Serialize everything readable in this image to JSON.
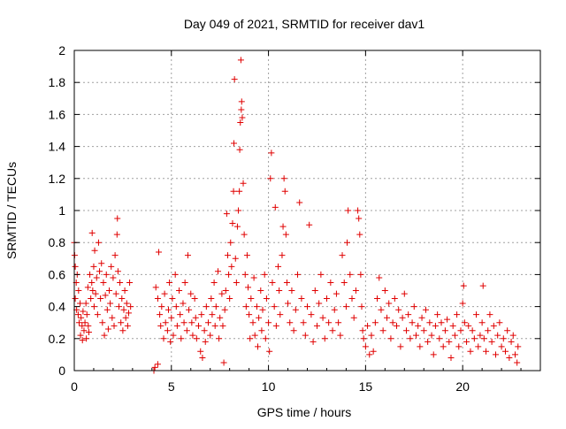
{
  "chart_data": {
    "type": "scatter",
    "title": "Day 049 of 2021, SRMTID for receiver dav1",
    "xlabel": "GPS time / hours",
    "ylabel": "SRMTID / TECUs",
    "xlim": [
      0,
      24
    ],
    "ylim": [
      0,
      2
    ],
    "xticks": [
      0,
      5,
      10,
      15,
      20
    ],
    "xtick_labels": [
      "0",
      "5",
      "10",
      "15",
      "20"
    ],
    "yticks": [
      0,
      0.2,
      0.4,
      0.6,
      0.8,
      1,
      1.2,
      1.4,
      1.6,
      1.8,
      2
    ],
    "ytick_labels": [
      "0",
      "0.2",
      "0.4",
      "0.6",
      "0.8",
      "1",
      "1.2",
      "1.4",
      "1.6",
      "1.8",
      "2"
    ],
    "grid": true,
    "marker": "+",
    "color": "#e00000",
    "series": [
      {
        "name": "dav1",
        "points": [
          [
            0.0,
            0.8
          ],
          [
            0.02,
            0.72
          ],
          [
            0.05,
            0.65
          ],
          [
            0.05,
            0.45
          ],
          [
            0.1,
            0.55
          ],
          [
            0.12,
            0.38
          ],
          [
            0.15,
            0.6
          ],
          [
            0.2,
            0.35
          ],
          [
            0.22,
            0.5
          ],
          [
            0.25,
            0.3
          ],
          [
            0.3,
            0.42
          ],
          [
            0.32,
            0.22
          ],
          [
            0.35,
            0.33
          ],
          [
            0.4,
            0.28
          ],
          [
            0.42,
            0.19
          ],
          [
            0.45,
            0.37
          ],
          [
            0.5,
            0.25
          ],
          [
            0.55,
            0.3
          ],
          [
            0.6,
            0.42
          ],
          [
            0.62,
            0.2
          ],
          [
            0.65,
            0.35
          ],
          [
            0.7,
            0.52
          ],
          [
            0.72,
            0.28
          ],
          [
            0.75,
            0.24
          ],
          [
            0.8,
            0.6
          ],
          [
            0.85,
            0.45
          ],
          [
            0.9,
            0.55
          ],
          [
            0.92,
            0.86
          ],
          [
            0.95,
            0.5
          ],
          [
            1.0,
            0.65
          ],
          [
            1.02,
            0.4
          ],
          [
            1.05,
            0.75
          ],
          [
            1.1,
            0.48
          ],
          [
            1.15,
            0.58
          ],
          [
            1.2,
            0.35
          ],
          [
            1.25,
            0.8
          ],
          [
            1.3,
            0.62
          ],
          [
            1.35,
            0.45
          ],
          [
            1.4,
            0.67
          ],
          [
            1.45,
            0.3
          ],
          [
            1.5,
            0.55
          ],
          [
            1.55,
            0.22
          ],
          [
            1.6,
            0.47
          ],
          [
            1.65,
            0.6
          ],
          [
            1.7,
            0.38
          ],
          [
            1.75,
            0.26
          ],
          [
            1.8,
            0.5
          ],
          [
            1.85,
            0.42
          ],
          [
            1.9,
            0.65
          ],
          [
            1.95,
            0.33
          ],
          [
            2.0,
            0.58
          ],
          [
            2.05,
            0.28
          ],
          [
            2.1,
            0.72
          ],
          [
            2.15,
            0.48
          ],
          [
            2.2,
            0.85
          ],
          [
            2.22,
            0.95
          ],
          [
            2.25,
            0.62
          ],
          [
            2.3,
            0.4
          ],
          [
            2.35,
            0.55
          ],
          [
            2.4,
            0.3
          ],
          [
            2.45,
            0.45
          ],
          [
            2.5,
            0.25
          ],
          [
            2.55,
            0.38
          ],
          [
            2.6,
            0.5
          ],
          [
            2.65,
            0.33
          ],
          [
            2.7,
            0.42
          ],
          [
            2.75,
            0.28
          ],
          [
            2.8,
            0.36
          ],
          [
            2.85,
            0.55
          ],
          [
            2.9,
            0.4
          ],
          [
            4.1,
            0.0
          ],
          [
            4.15,
            0.02
          ],
          [
            4.3,
            0.04
          ],
          [
            4.35,
            0.74
          ],
          [
            4.2,
            0.52
          ],
          [
            4.3,
            0.45
          ],
          [
            4.4,
            0.35
          ],
          [
            4.45,
            0.28
          ],
          [
            4.5,
            0.4
          ],
          [
            4.6,
            0.2
          ],
          [
            4.65,
            0.48
          ],
          [
            4.7,
            0.3
          ],
          [
            4.8,
            0.25
          ],
          [
            4.85,
            0.38
          ],
          [
            4.9,
            0.55
          ],
          [
            4.95,
            0.18
          ],
          [
            5.0,
            0.33
          ],
          [
            5.05,
            0.45
          ],
          [
            5.1,
            0.22
          ],
          [
            5.2,
            0.6
          ],
          [
            5.25,
            0.4
          ],
          [
            5.3,
            0.28
          ],
          [
            5.4,
            0.5
          ],
          [
            5.45,
            0.35
          ],
          [
            5.5,
            0.2
          ],
          [
            5.6,
            0.42
          ],
          [
            5.65,
            0.3
          ],
          [
            5.7,
            0.55
          ],
          [
            5.8,
            0.25
          ],
          [
            5.85,
            0.72
          ],
          [
            5.9,
            0.38
          ],
          [
            6.0,
            0.48
          ],
          [
            6.05,
            0.3
          ],
          [
            6.1,
            0.22
          ],
          [
            6.2,
            0.45
          ],
          [
            6.25,
            0.33
          ],
          [
            6.3,
            0.2
          ],
          [
            6.4,
            0.28
          ],
          [
            6.5,
            0.12
          ],
          [
            6.55,
            0.35
          ],
          [
            6.6,
            0.08
          ],
          [
            6.7,
            0.25
          ],
          [
            6.75,
            0.18
          ],
          [
            6.8,
            0.4
          ],
          [
            6.9,
            0.3
          ],
          [
            7.0,
            0.22
          ],
          [
            7.05,
            0.45
          ],
          [
            7.1,
            0.35
          ],
          [
            7.2,
            0.55
          ],
          [
            7.25,
            0.28
          ],
          [
            7.3,
            0.4
          ],
          [
            7.4,
            0.62
          ],
          [
            7.45,
            0.2
          ],
          [
            7.5,
            0.33
          ],
          [
            7.6,
            0.48
          ],
          [
            7.65,
            0.28
          ],
          [
            7.7,
            0.05
          ],
          [
            7.75,
            0.38
          ],
          [
            7.8,
            0.5
          ],
          [
            7.85,
            0.98
          ],
          [
            7.9,
            0.72
          ],
          [
            7.95,
            0.6
          ],
          [
            8.0,
            0.45
          ],
          [
            8.05,
            0.8
          ],
          [
            8.1,
            0.65
          ],
          [
            8.15,
            0.92
          ],
          [
            8.2,
            1.12
          ],
          [
            8.22,
            1.42
          ],
          [
            8.25,
            1.82
          ],
          [
            8.3,
            0.7
          ],
          [
            8.35,
            0.55
          ],
          [
            8.4,
            0.9
          ],
          [
            8.45,
            1.0
          ],
          [
            8.5,
            1.12
          ],
          [
            8.52,
            1.38
          ],
          [
            8.55,
            1.55
          ],
          [
            8.6,
            1.63
          ],
          [
            8.62,
            1.68
          ],
          [
            8.65,
            1.58
          ],
          [
            8.58,
            1.94
          ],
          [
            8.7,
            1.17
          ],
          [
            8.75,
            0.85
          ],
          [
            8.8,
            0.6
          ],
          [
            8.85,
            0.4
          ],
          [
            8.9,
            0.72
          ],
          [
            8.95,
            0.52
          ],
          [
            9.0,
            0.35
          ],
          [
            9.05,
            0.2
          ],
          [
            9.1,
            0.45
          ],
          [
            9.2,
            0.3
          ],
          [
            9.25,
            0.58
          ],
          [
            9.3,
            0.22
          ],
          [
            9.4,
            0.4
          ],
          [
            9.45,
            0.15
          ],
          [
            9.5,
            0.33
          ],
          [
            9.6,
            0.5
          ],
          [
            9.65,
            0.25
          ],
          [
            9.7,
            0.38
          ],
          [
            9.8,
            0.6
          ],
          [
            9.85,
            0.2
          ],
          [
            9.9,
            0.45
          ],
          [
            10.0,
            0.3
          ],
          [
            10.05,
            0.12
          ],
          [
            10.1,
            1.2
          ],
          [
            10.15,
            1.36
          ],
          [
            10.2,
            0.55
          ],
          [
            10.3,
            0.4
          ],
          [
            10.35,
            1.02
          ],
          [
            10.4,
            0.28
          ],
          [
            10.5,
            0.65
          ],
          [
            10.55,
            0.5
          ],
          [
            10.6,
            0.35
          ],
          [
            10.7,
            0.72
          ],
          [
            10.75,
            0.9
          ],
          [
            10.8,
            1.2
          ],
          [
            10.85,
            1.12
          ],
          [
            10.9,
            0.85
          ],
          [
            10.95,
            0.55
          ],
          [
            11.0,
            0.42
          ],
          [
            11.1,
            0.3
          ],
          [
            11.2,
            0.5
          ],
          [
            11.3,
            0.25
          ],
          [
            11.4,
            0.38
          ],
          [
            11.5,
            0.6
          ],
          [
            11.6,
            1.05
          ],
          [
            11.7,
            0.45
          ],
          [
            11.8,
            0.3
          ],
          [
            11.9,
            0.22
          ],
          [
            12.0,
            0.4
          ],
          [
            12.1,
            0.91
          ],
          [
            12.2,
            0.35
          ],
          [
            12.3,
            0.18
          ],
          [
            12.4,
            0.5
          ],
          [
            12.5,
            0.28
          ],
          [
            12.6,
            0.42
          ],
          [
            12.7,
            0.6
          ],
          [
            12.8,
            0.33
          ],
          [
            12.9,
            0.2
          ],
          [
            13.0,
            0.45
          ],
          [
            13.1,
            0.3
          ],
          [
            13.2,
            0.55
          ],
          [
            13.3,
            0.25
          ],
          [
            13.4,
            0.38
          ],
          [
            13.5,
            0.48
          ],
          [
            13.6,
            0.3
          ],
          [
            13.7,
            0.22
          ],
          [
            13.8,
            0.72
          ],
          [
            13.9,
            0.55
          ],
          [
            14.0,
            0.4
          ],
          [
            14.05,
            0.8
          ],
          [
            14.1,
            1.0
          ],
          [
            14.2,
            0.6
          ],
          [
            14.3,
            0.45
          ],
          [
            14.4,
            0.33
          ],
          [
            14.5,
            0.5
          ],
          [
            14.6,
            1.0
          ],
          [
            14.65,
            0.95
          ],
          [
            14.7,
            0.85
          ],
          [
            14.75,
            0.6
          ],
          [
            14.8,
            0.4
          ],
          [
            14.85,
            0.25
          ],
          [
            14.9,
            0.2
          ],
          [
            15.0,
            0.15
          ],
          [
            15.1,
            0.28
          ],
          [
            15.2,
            0.1
          ],
          [
            15.3,
            0.22
          ],
          [
            15.4,
            0.12
          ],
          [
            15.5,
            0.3
          ],
          [
            15.6,
            0.45
          ],
          [
            15.7,
            0.58
          ],
          [
            15.8,
            0.38
          ],
          [
            15.9,
            0.25
          ],
          [
            16.0,
            0.5
          ],
          [
            16.1,
            0.33
          ],
          [
            16.2,
            0.42
          ],
          [
            16.3,
            0.2
          ],
          [
            16.4,
            0.3
          ],
          [
            16.5,
            0.45
          ],
          [
            16.6,
            0.28
          ],
          [
            16.7,
            0.38
          ],
          [
            16.8,
            0.15
          ],
          [
            16.9,
            0.33
          ],
          [
            17.0,
            0.48
          ],
          [
            17.1,
            0.25
          ],
          [
            17.2,
            0.35
          ],
          [
            17.3,
            0.2
          ],
          [
            17.4,
            0.3
          ],
          [
            17.5,
            0.4
          ],
          [
            17.6,
            0.22
          ],
          [
            17.7,
            0.28
          ],
          [
            17.8,
            0.15
          ],
          [
            17.9,
            0.33
          ],
          [
            18.0,
            0.25
          ],
          [
            18.1,
            0.38
          ],
          [
            18.2,
            0.18
          ],
          [
            18.3,
            0.3
          ],
          [
            18.4,
            0.22
          ],
          [
            18.5,
            0.1
          ],
          [
            18.6,
            0.28
          ],
          [
            18.7,
            0.35
          ],
          [
            18.8,
            0.2
          ],
          [
            18.9,
            0.3
          ],
          [
            19.0,
            0.15
          ],
          [
            19.1,
            0.25
          ],
          [
            19.2,
            0.32
          ],
          [
            19.3,
            0.18
          ],
          [
            19.4,
            0.08
          ],
          [
            19.5,
            0.28
          ],
          [
            19.6,
            0.22
          ],
          [
            19.7,
            0.35
          ],
          [
            19.8,
            0.15
          ],
          [
            19.9,
            0.25
          ],
          [
            20.0,
            0.42
          ],
          [
            20.05,
            0.53
          ],
          [
            20.1,
            0.3
          ],
          [
            20.2,
            0.18
          ],
          [
            20.3,
            0.28
          ],
          [
            20.4,
            0.12
          ],
          [
            20.5,
            0.25
          ],
          [
            20.6,
            0.2
          ],
          [
            20.7,
            0.35
          ],
          [
            20.8,
            0.15
          ],
          [
            20.9,
            0.22
          ],
          [
            21.0,
            0.3
          ],
          [
            21.05,
            0.53
          ],
          [
            21.1,
            0.2
          ],
          [
            21.2,
            0.12
          ],
          [
            21.3,
            0.25
          ],
          [
            21.4,
            0.35
          ],
          [
            21.5,
            0.18
          ],
          [
            21.6,
            0.28
          ],
          [
            21.7,
            0.1
          ],
          [
            21.8,
            0.22
          ],
          [
            21.9,
            0.3
          ],
          [
            22.0,
            0.15
          ],
          [
            22.1,
            0.2
          ],
          [
            22.2,
            0.12
          ],
          [
            22.3,
            0.25
          ],
          [
            22.4,
            0.08
          ],
          [
            22.5,
            0.18
          ],
          [
            22.6,
            0.22
          ],
          [
            22.7,
            0.1
          ],
          [
            22.8,
            0.05
          ],
          [
            22.85,
            0.15
          ]
        ]
      }
    ]
  }
}
